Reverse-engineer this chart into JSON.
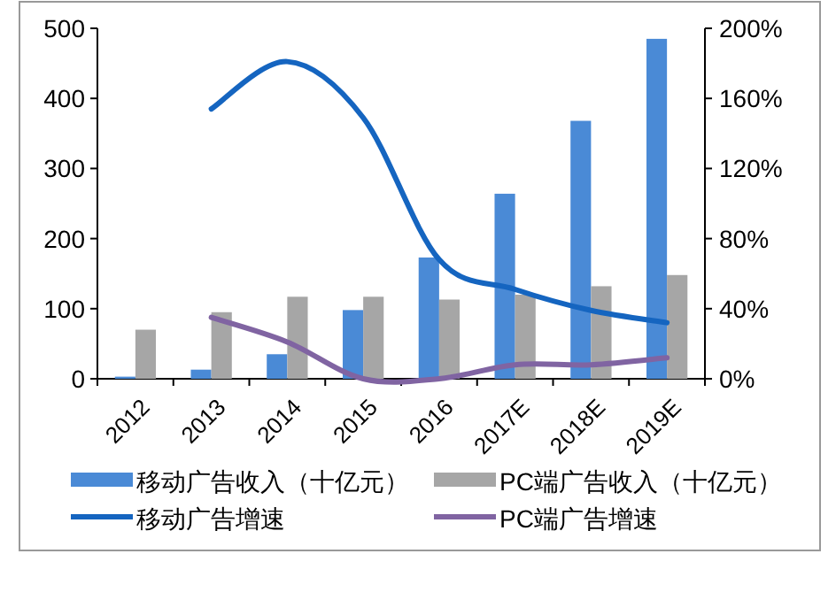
{
  "chart_data": {
    "type": "bar",
    "categories": [
      "2012",
      "2013",
      "2014",
      "2015",
      "2016",
      "2017E",
      "2018E",
      "2019E"
    ],
    "series": [
      {
        "name": "移动广告收入（十亿元）",
        "color": "#4a8ad6",
        "values": [
          3,
          13,
          35,
          98,
          173,
          264,
          368,
          485
        ]
      },
      {
        "name": "PC端广告收入（十亿元）",
        "color": "#a6a6a6",
        "values": [
          70,
          95,
          117,
          117,
          113,
          120,
          132,
          148
        ]
      },
      {
        "name": "移动广告增速",
        "type": "line",
        "axis": "y2",
        "color": "#1565c0",
        "values": [
          null,
          154,
          181,
          149,
          68,
          51,
          39,
          32
        ]
      },
      {
        "name": "PC端广告增速",
        "type": "line",
        "axis": "y2",
        "color": "#8064a2",
        "values": [
          null,
          35,
          21,
          0,
          0,
          8,
          8,
          12
        ]
      }
    ],
    "ylim": [
      0,
      500
    ],
    "yticks": [
      0,
      100,
      200,
      300,
      400,
      500
    ],
    "y2lim": [
      0,
      200
    ],
    "y2ticks": [
      {
        "value": 0,
        "label": "0%"
      },
      {
        "value": 40,
        "label": "40%"
      },
      {
        "value": 80,
        "label": "80%"
      },
      {
        "value": 120,
        "label": "120%"
      },
      {
        "value": 160,
        "label": "160%"
      },
      {
        "value": 200,
        "label": "200%"
      }
    ],
    "legend": "bottom"
  }
}
